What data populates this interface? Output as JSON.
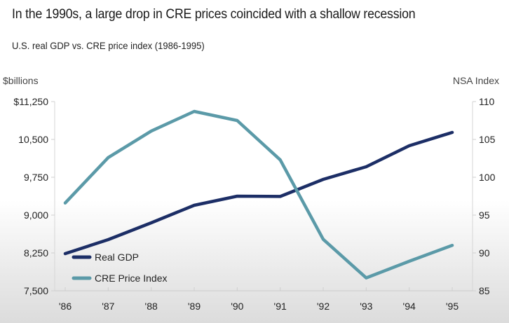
{
  "header": {
    "title": "In the 1990s, a large drop in CRE prices coincided with a shallow recession",
    "subtitle": "U.S. real GDP vs. CRE price index (1986-1995)"
  },
  "chart_data": {
    "type": "line",
    "title": "In the 1990s, a large drop in CRE prices coincided with a shallow recession",
    "subtitle": "U.S. real GDP vs. CRE price index (1986-1995)",
    "x": [
      "'86",
      "'87",
      "'88",
      "'89",
      "'90",
      "'91",
      "'92",
      "'93",
      "'94",
      "'95"
    ],
    "xlabel": "",
    "y_left": {
      "label": "$billions",
      "range": [
        7500,
        11250
      ],
      "ticks": [
        7500,
        8250,
        9000,
        9750,
        10500,
        11250
      ],
      "tick_labels": [
        "7,500",
        "8,250",
        "9,000",
        "9,750",
        "10,500",
        "$11,250"
      ]
    },
    "y_right": {
      "label": "NSA Index",
      "range": [
        85,
        110
      ],
      "ticks": [
        85,
        90,
        95,
        100,
        105,
        110
      ],
      "tick_labels": [
        "85",
        "90",
        "95",
        "100",
        "105",
        "110"
      ]
    },
    "series": [
      {
        "name": "Real GDP",
        "axis": "left",
        "color": "#1c2e66",
        "values": [
          8236,
          8514,
          8847,
          9194,
          9375,
          9370,
          9708,
          9958,
          10375,
          10639
        ]
      },
      {
        "name": "CRE Price Index",
        "axis": "right",
        "color": "#5b9aa8",
        "values": [
          96.6,
          102.6,
          106.1,
          108.7,
          107.5,
          102.3,
          91.8,
          86.7,
          88.9,
          91.0
        ]
      }
    ],
    "legend": {
      "position": "bottom-left",
      "entries": [
        "Real GDP",
        "CRE Price Index"
      ]
    },
    "grid": false
  }
}
